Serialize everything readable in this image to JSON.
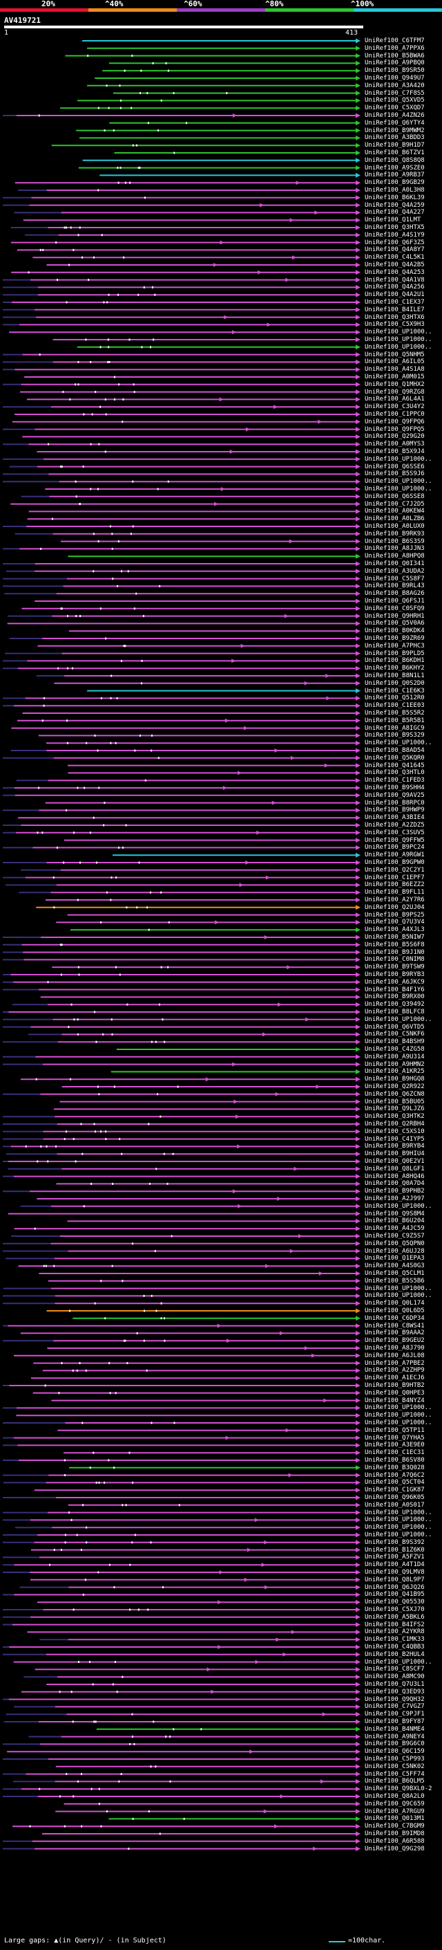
{
  "scale": {
    "labels": [
      "20%",
      "^40%",
      "^60%",
      "^80%",
      "^100%"
    ],
    "colors": [
      "#e8112d",
      "#f08a1c",
      "#9b3fc7",
      "#2dc62d",
      "#28c8d8"
    ]
  },
  "query": {
    "title": "AV419721",
    "start": "1",
    "end": "413"
  },
  "colors": {
    "identity_20": "#e8112d",
    "identity_40": "#f08a1c",
    "identity_60": "#d74fd6",
    "identity_80": "#2dc62d",
    "identity_100": "#28c8d8",
    "gap": "#3a2f7a",
    "insert": "#ffffff"
  },
  "hits": [
    {
      "label": "UniRef100_C6TFM7",
      "color": "cyan"
    },
    {
      "label": "UniRef100_A7PPX6",
      "color": "green"
    },
    {
      "label": "UniRef100_B5BWA6",
      "color": "green"
    },
    {
      "label": "UniRef100_A9PBQ0",
      "color": "green"
    },
    {
      "label": "UniRef100_B9SR50",
      "color": "green"
    },
    {
      "label": "UniRef100_Q949U7",
      "color": "green"
    },
    {
      "label": "UniRef100_A3A420",
      "color": "green"
    },
    {
      "label": "UniRef100_C7F8S5",
      "color": "green"
    },
    {
      "label": "UniRef100_Q5XVD5",
      "color": "green"
    },
    {
      "label": "UniRef100_C5XQD7",
      "color": "green"
    },
    {
      "label": "UniRef100_A4ZN26",
      "color": "magenta"
    },
    {
      "label": "UniRef100_Q6YTY4",
      "color": "green"
    },
    {
      "label": "UniRef100_B9MWM2",
      "color": "green"
    },
    {
      "label": "UniRef100_A3BDD3",
      "color": "green"
    },
    {
      "label": "UniRef100_B9H1D7",
      "color": "green"
    },
    {
      "label": "UniRef100_B6TZV1",
      "color": "green"
    },
    {
      "label": "UniRef100_Q8S8Q8",
      "color": "cyan"
    },
    {
      "label": "UniRef100_A9SZE0",
      "color": "green"
    },
    {
      "label": "UniRef100_A9RB37",
      "color": "cyan"
    },
    {
      "label": "UniRef100_B9GB29",
      "color": "magenta"
    },
    {
      "label": "UniRef100_A0L3H8",
      "color": "magenta"
    },
    {
      "label": "UniRef100_B6KL39",
      "color": "magenta"
    },
    {
      "label": "UniRef100_Q4A259",
      "color": "magenta"
    },
    {
      "label": "UniRef100_Q4A227",
      "color": "magenta"
    },
    {
      "label": "UniRef100_Q1LMT",
      "color": "magenta"
    },
    {
      "label": "UniRef100_Q3HTX5",
      "color": "magenta"
    },
    {
      "label": "UniRef100_A4S1Y9",
      "color": "magenta"
    },
    {
      "label": "UniRef100_Q6F3Z5",
      "color": "magenta"
    },
    {
      "label": "UniRef100_Q4A8Y7",
      "color": "magenta"
    },
    {
      "label": "UniRef100_C4L5K1",
      "color": "magenta"
    },
    {
      "label": "UniRef100_Q4A2B5",
      "color": "magenta"
    },
    {
      "label": "UniRef100_Q4A253",
      "color": "magenta"
    },
    {
      "label": "UniRef100_Q4A1V8",
      "color": "magenta"
    },
    {
      "label": "UniRef100_Q4A256",
      "color": "magenta"
    },
    {
      "label": "UniRef100_Q4A2U1",
      "color": "magenta"
    },
    {
      "label": "UniRef100_C1EX37",
      "color": "magenta"
    },
    {
      "label": "UniRef100_B4ILE7",
      "color": "magenta"
    },
    {
      "label": "UniRef100_Q3HTX6",
      "color": "magenta"
    },
    {
      "label": "UniRef100_C5X9H3",
      "color": "magenta"
    },
    {
      "label": "UniRef100_UP1000..",
      "color": "magenta"
    },
    {
      "label": "UniRef100_UP1000..",
      "color": "magenta"
    },
    {
      "label": "UniRef100_UP1000..",
      "color": "green"
    },
    {
      "label": "UniRef100_Q5NHM5",
      "color": "magenta"
    },
    {
      "label": "UniRef100_A6IL05",
      "color": "magenta"
    },
    {
      "label": "UniRef100_A4S1A8",
      "color": "magenta"
    },
    {
      "label": "UniRef100_A0M015",
      "color": "magenta"
    },
    {
      "label": "UniRef100_Q1MHX2",
      "color": "magenta"
    },
    {
      "label": "UniRef100_Q9RZG8",
      "color": "magenta"
    },
    {
      "label": "UniRef100_A6L4A1",
      "color": "magenta"
    },
    {
      "label": "UniRef100_C3U4Y2",
      "color": "magenta"
    },
    {
      "label": "UniRef100_C1PPC0",
      "color": "magenta"
    },
    {
      "label": "UniRef100_Q9FPQ6",
      "color": "magenta"
    },
    {
      "label": "UniRef100_Q9FPQ5",
      "color": "magenta"
    },
    {
      "label": "UniRef100_Q29G20",
      "color": "magenta"
    },
    {
      "label": "UniRef100_A0MYS3",
      "color": "magenta"
    },
    {
      "label": "UniRef100_B5X9J4",
      "color": "magenta"
    },
    {
      "label": "UniRef100_UP1000..",
      "color": "magenta"
    },
    {
      "label": "UniRef100_Q6SSE6",
      "color": "magenta"
    },
    {
      "label": "UniRef100_B5S9J6",
      "color": "magenta"
    },
    {
      "label": "UniRef100_UP1000..",
      "color": "magenta"
    },
    {
      "label": "UniRef100_UP1000..",
      "color": "magenta"
    },
    {
      "label": "UniRef100_Q6SSE8",
      "color": "magenta"
    },
    {
      "label": "UniRef100_C7J2D5",
      "color": "magenta"
    },
    {
      "label": "UniRef100_A0KEW4",
      "color": "magenta"
    },
    {
      "label": "UniRef100_A0LZB6",
      "color": "magenta"
    },
    {
      "label": "UniRef100_A0LUX0",
      "color": "magenta"
    },
    {
      "label": "UniRef100_B9RK93",
      "color": "magenta"
    },
    {
      "label": "UniRef100_B6S3S9",
      "color": "magenta"
    },
    {
      "label": "UniRef100_A8JJN3",
      "color": "magenta"
    },
    {
      "label": "UniRef100_A8HPQ8",
      "color": "green"
    },
    {
      "label": "UniRef100_Q0I341",
      "color": "magenta"
    },
    {
      "label": "UniRef100_A3UDA2",
      "color": "magenta"
    },
    {
      "label": "UniRef100_C5S8F7",
      "color": "magenta"
    },
    {
      "label": "UniRef100_B9RL43",
      "color": "magenta"
    },
    {
      "label": "UniRef100_B8AG26",
      "color": "magenta"
    },
    {
      "label": "UniRef100_Q6FSJ1",
      "color": "magenta"
    },
    {
      "label": "UniRef100_C0SFQ9",
      "color": "magenta"
    },
    {
      "label": "UniRef100_Q9HRH1",
      "color": "magenta"
    },
    {
      "label": "UniRef100_Q5V0A6",
      "color": "magenta"
    },
    {
      "label": "UniRef100_B0KDK4",
      "color": "magenta"
    },
    {
      "label": "UniRef100_B9ZR69",
      "color": "magenta"
    },
    {
      "label": "UniRef100_A7PHC3",
      "color": "magenta"
    },
    {
      "label": "UniRef100_B9PLD5",
      "color": "magenta"
    },
    {
      "label": "UniRef100_B6KDH1",
      "color": "magenta"
    },
    {
      "label": "UniRef100_B6KHY2",
      "color": "magenta"
    },
    {
      "label": "UniRef100_B8N1L1",
      "color": "magenta"
    },
    {
      "label": "UniRef100_Q0S2D0",
      "color": "magenta"
    },
    {
      "label": "UniRef100_C1E6K3",
      "color": "cyan"
    },
    {
      "label": "UniRef100_Q512R0",
      "color": "magenta"
    },
    {
      "label": "UniRef100_C1EE03",
      "color": "magenta"
    },
    {
      "label": "UniRef100_B5S5R2",
      "color": "magenta"
    },
    {
      "label": "UniRef100_B5R5B1",
      "color": "magenta"
    },
    {
      "label": "UniRef100_A8IGC9",
      "color": "magenta"
    },
    {
      "label": "UniRef100_B9S329",
      "color": "magenta"
    },
    {
      "label": "UniRef100_UP1000..",
      "color": "magenta"
    },
    {
      "label": "UniRef100_B8AD54",
      "color": "magenta"
    },
    {
      "label": "UniRef100_Q5KQR0",
      "color": "magenta"
    },
    {
      "label": "UniRef100_Q41645",
      "color": "magenta"
    },
    {
      "label": "UniRef100_Q3HTL0",
      "color": "magenta"
    },
    {
      "label": "UniRef100_C1FED3",
      "color": "magenta"
    },
    {
      "label": "UniRef100_B9SHH4",
      "color": "magenta"
    },
    {
      "label": "UniRef100_Q9AV25",
      "color": "magenta"
    },
    {
      "label": "UniRef100_B8RPC0",
      "color": "magenta"
    },
    {
      "label": "UniRef100_B9HWP9",
      "color": "magenta"
    },
    {
      "label": "UniRef100_A3BIE4",
      "color": "magenta"
    },
    {
      "label": "UniRef100_A2ZDZ5",
      "color": "magenta"
    },
    {
      "label": "UniRef100_C3SUV5",
      "color": "magenta"
    },
    {
      "label": "UniRef100_Q9FFW5",
      "color": "magenta"
    },
    {
      "label": "UniRef100_B9PC24",
      "color": "magenta"
    },
    {
      "label": "UniRef100_A9RGW1",
      "color": "cyan"
    },
    {
      "label": "UniRef100_B9GPW0",
      "color": "magenta"
    },
    {
      "label": "UniRef100_Q2C2Y1",
      "color": "magenta"
    },
    {
      "label": "UniRef100_C1EPF7",
      "color": "magenta"
    },
    {
      "label": "UniRef100_B6EZZ2",
      "color": "magenta"
    },
    {
      "label": "UniRef100_B9FL11",
      "color": "magenta"
    },
    {
      "label": "UniRef100_A2Y7R6",
      "color": "magenta"
    },
    {
      "label": "UniRef100_Q2UJ04",
      "color": "orange"
    },
    {
      "label": "UniRef100_B9PS25",
      "color": "magenta"
    },
    {
      "label": "UniRef100_Q7U3V4",
      "color": "magenta"
    },
    {
      "label": "UniRef100_A4XJL3",
      "color": "green"
    },
    {
      "label": "UniRef100_B5NIW7",
      "color": "magenta"
    },
    {
      "label": "UniRef100_B5S6F8",
      "color": "magenta"
    },
    {
      "label": "UniRef100_B9J1N0",
      "color": "magenta"
    },
    {
      "label": "UniRef100_C0NIM8",
      "color": "magenta"
    },
    {
      "label": "UniRef100_B9TSW9",
      "color": "magenta"
    },
    {
      "label": "UniRef100_B9RYB3",
      "color": "magenta"
    },
    {
      "label": "UniRef100_A6JKC9",
      "color": "magenta"
    },
    {
      "label": "UniRef100_B4F1Y6",
      "color": "magenta"
    },
    {
      "label": "UniRef100_B9RX00",
      "color": "magenta"
    },
    {
      "label": "UniRef100_Q39492",
      "color": "magenta"
    },
    {
      "label": "UniRef100_B8LFC8",
      "color": "magenta"
    },
    {
      "label": "UniRef100_UP1000..",
      "color": "magenta"
    },
    {
      "label": "UniRef100_Q6VTD5",
      "color": "magenta"
    },
    {
      "label": "UniRef100_C5NKF6",
      "color": "magenta"
    },
    {
      "label": "UniRef100_B4BSH9",
      "color": "magenta"
    },
    {
      "label": "UniRef100_C4ZG58",
      "color": "green"
    },
    {
      "label": "UniRef100_A9U314",
      "color": "magenta"
    },
    {
      "label": "UniRef100_A9HMN2",
      "color": "magenta"
    },
    {
      "label": "UniRef100_A1KR25",
      "color": "green"
    },
    {
      "label": "UniRef100_B9HGQ8",
      "color": "magenta"
    },
    {
      "label": "UniRef100_Q2R922",
      "color": "magenta"
    },
    {
      "label": "UniRef100_Q6ZCN8",
      "color": "magenta"
    },
    {
      "label": "UniRef100_B5BU05",
      "color": "magenta"
    },
    {
      "label": "UniRef100_Q9LJZ6",
      "color": "magenta"
    },
    {
      "label": "UniRef100_Q3HTK2",
      "color": "magenta"
    },
    {
      "label": "UniRef100_Q2RBH4",
      "color": "magenta"
    },
    {
      "label": "UniRef100_C5XS10",
      "color": "magenta"
    },
    {
      "label": "UniRef100_C4IYP5",
      "color": "magenta"
    },
    {
      "label": "UniRef100_B9RYB4",
      "color": "magenta"
    },
    {
      "label": "UniRef100_B9HIU4",
      "color": "magenta"
    },
    {
      "label": "UniRef100_Q0E2V1",
      "color": "magenta"
    },
    {
      "label": "UniRef100_Q8LGF1",
      "color": "magenta"
    },
    {
      "label": "UniRef100_A8HQ46",
      "color": "magenta"
    },
    {
      "label": "UniRef100_Q0A7D4",
      "color": "magenta"
    },
    {
      "label": "UniRef100_B9PHB2",
      "color": "magenta"
    },
    {
      "label": "UniRef100_A2J997",
      "color": "magenta"
    },
    {
      "label": "UniRef100_UP1000..",
      "color": "magenta"
    },
    {
      "label": "UniRef100_Q9S8M4",
      "color": "magenta"
    },
    {
      "label": "UniRef100_B6U204",
      "color": "magenta"
    },
    {
      "label": "UniRef100_A4JC59",
      "color": "magenta"
    },
    {
      "label": "UniRef100_C9Z5S7",
      "color": "magenta"
    },
    {
      "label": "UniRef100_Q5QPN0",
      "color": "magenta"
    },
    {
      "label": "UniRef100_A6UJ28",
      "color": "magenta"
    },
    {
      "label": "UniRef100_Q1EPA3",
      "color": "magenta"
    },
    {
      "label": "UniRef100_A4S0G3",
      "color": "magenta"
    },
    {
      "label": "UniRef100_Q5CLM1",
      "color": "magenta"
    },
    {
      "label": "UniRef100_B5S5B6",
      "color": "magenta"
    },
    {
      "label": "UniRef100_UP1000..",
      "color": "magenta"
    },
    {
      "label": "UniRef100_UP1000..",
      "color": "magenta"
    },
    {
      "label": "UniRef100_Q0L174",
      "color": "magenta"
    },
    {
      "label": "UniRef100_Q0L6D5",
      "color": "orange"
    },
    {
      "label": "UniRef100_C6DP34",
      "color": "green"
    },
    {
      "label": "UniRef100_C8WS41",
      "color": "magenta"
    },
    {
      "label": "UniRef100_B9AAA2",
      "color": "magenta"
    },
    {
      "label": "UniRef100_B9GEU2",
      "color": "magenta"
    },
    {
      "label": "UniRef100_A8J790",
      "color": "magenta"
    },
    {
      "label": "UniRef100_A6JL08",
      "color": "magenta"
    },
    {
      "label": "UniRef100_A7PBE2",
      "color": "magenta"
    },
    {
      "label": "UniRef100_A2ZHP9",
      "color": "magenta"
    },
    {
      "label": "UniRef100_A1ECJ6",
      "color": "magenta"
    },
    {
      "label": "UniRef100_B9HTB2",
      "color": "magenta"
    },
    {
      "label": "UniRef100_Q0HPE3",
      "color": "magenta"
    },
    {
      "label": "UniRef100_B4NYZ4",
      "color": "magenta"
    },
    {
      "label": "UniRef100_UP1000..",
      "color": "magenta"
    },
    {
      "label": "UniRef100_UP1000..",
      "color": "magenta"
    },
    {
      "label": "UniRef100_UP1000..",
      "color": "magenta"
    },
    {
      "label": "UniRef100_Q5TP11",
      "color": "magenta"
    },
    {
      "label": "UniRef100_Q7YHA5",
      "color": "magenta"
    },
    {
      "label": "UniRef100_A3E9E0",
      "color": "magenta"
    },
    {
      "label": "UniRef100_C1EC31",
      "color": "magenta"
    },
    {
      "label": "UniRef100_B6SV80",
      "color": "magenta"
    },
    {
      "label": "UniRef100_B3Q028",
      "color": "green"
    },
    {
      "label": "UniRef100_A7Q6C2",
      "color": "magenta"
    },
    {
      "label": "UniRef100_Q5CT04",
      "color": "magenta"
    },
    {
      "label": "UniRef100_C1GK87",
      "color": "magenta"
    },
    {
      "label": "UniRef100_Q96K05",
      "color": "magenta"
    },
    {
      "label": "UniRef100_A0S017",
      "color": "magenta"
    },
    {
      "label": "UniRef100_UP1000..",
      "color": "magenta"
    },
    {
      "label": "UniRef100_UP1000..",
      "color": "magenta"
    },
    {
      "label": "UniRef100_UP1000..",
      "color": "magenta"
    },
    {
      "label": "UniRef100_UP1000..",
      "color": "magenta"
    },
    {
      "label": "UniRef100_B9S392",
      "color": "magenta"
    },
    {
      "label": "UniRef100_B1Z6K0",
      "color": "magenta"
    },
    {
      "label": "UniRef100_A5FZV1",
      "color": "magenta"
    },
    {
      "label": "UniRef100_A4T1D4",
      "color": "magenta"
    },
    {
      "label": "UniRef100_Q9LMV8",
      "color": "magenta"
    },
    {
      "label": "UniRef100_Q8L9P7",
      "color": "magenta"
    },
    {
      "label": "UniRef100_Q6JQ26",
      "color": "magenta"
    },
    {
      "label": "UniRef100_Q41B95",
      "color": "magenta"
    },
    {
      "label": "UniRef100_Q05530",
      "color": "magenta"
    },
    {
      "label": "UniRef100_C5XJ70",
      "color": "magenta"
    },
    {
      "label": "UniRef100_A5BKL6",
      "color": "magenta"
    },
    {
      "label": "UniRef100_B4IFS2",
      "color": "magenta"
    },
    {
      "label": "UniRef100_A2YKR8",
      "color": "magenta"
    },
    {
      "label": "UniRef100_C1MK33",
      "color": "magenta"
    },
    {
      "label": "UniRef100_C4QBB3",
      "color": "magenta"
    },
    {
      "label": "UniRef100_B2HUL4",
      "color": "magenta"
    },
    {
      "label": "UniRef100_UP1000..",
      "color": "magenta"
    },
    {
      "label": "UniRef100_C8SCF7",
      "color": "magenta"
    },
    {
      "label": "UniRef100_A8MC90",
      "color": "magenta"
    },
    {
      "label": "UniRef100_Q7U3L1",
      "color": "magenta"
    },
    {
      "label": "UniRef100_Q3ED93",
      "color": "magenta"
    },
    {
      "label": "UniRef100_Q9QH32",
      "color": "magenta"
    },
    {
      "label": "UniRef100_C7VGZ7",
      "color": "magenta"
    },
    {
      "label": "UniRef100_C9PJF1",
      "color": "magenta"
    },
    {
      "label": "UniRef100_B9FY87",
      "color": "magenta"
    },
    {
      "label": "UniRef100_B4NME4",
      "color": "green"
    },
    {
      "label": "UniRef100_A9NEY4",
      "color": "magenta"
    },
    {
      "label": "UniRef100_B9G6C0",
      "color": "magenta"
    },
    {
      "label": "UniRef100_Q6C159",
      "color": "magenta"
    },
    {
      "label": "UniRef100_C5P993",
      "color": "magenta"
    },
    {
      "label": "UniRef100_C5NK02",
      "color": "magenta"
    },
    {
      "label": "UniRef100_C5FF74",
      "color": "magenta"
    },
    {
      "label": "UniRef100_B6QLM5",
      "color": "magenta"
    },
    {
      "label": "UniRef100_Q9BXL0-2",
      "color": "magenta"
    },
    {
      "label": "UniRef100_Q8A2L0",
      "color": "magenta"
    },
    {
      "label": "UniRef100_Q9C659",
      "color": "magenta"
    },
    {
      "label": "UniRef100_A7RGU9",
      "color": "magenta"
    },
    {
      "label": "UniRef100_Q013M1",
      "color": "green"
    },
    {
      "label": "UniRef100_C7BGM9",
      "color": "magenta"
    },
    {
      "label": "UniRef100_B9IMD8",
      "color": "magenta"
    },
    {
      "label": "UniRef100_A6R588",
      "color": "magenta"
    },
    {
      "label": "UniRef100_Q9G298",
      "color": "magenta"
    }
  ],
  "legend": {
    "left": "Large gaps: ▲(in Query)/ - (in Subject)",
    "right": "=100char."
  }
}
